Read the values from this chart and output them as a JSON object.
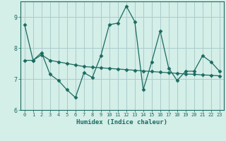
{
  "xlabel": "Humidex (Indice chaleur)",
  "bg_color": "#d4eee8",
  "grid_color": "#aacccc",
  "line_color": "#1a6b60",
  "xlim": [
    -0.5,
    23.5
  ],
  "ylim": [
    6,
    9.5
  ],
  "yticks": [
    6,
    7,
    8,
    9
  ],
  "xticks": [
    0,
    1,
    2,
    3,
    4,
    5,
    6,
    7,
    8,
    9,
    10,
    11,
    12,
    13,
    14,
    15,
    16,
    17,
    18,
    19,
    20,
    21,
    22,
    23
  ],
  "series1_x": [
    0,
    1,
    2,
    3,
    4,
    5,
    6,
    7,
    8,
    9,
    10,
    11,
    12,
    13,
    14,
    15,
    16,
    17,
    18,
    19,
    20,
    21,
    22,
    23
  ],
  "series1_y": [
    8.75,
    7.6,
    7.85,
    7.15,
    6.95,
    6.65,
    6.4,
    7.2,
    7.05,
    7.75,
    8.75,
    8.8,
    9.35,
    8.85,
    6.65,
    7.55,
    8.55,
    7.35,
    6.95,
    7.25,
    7.25,
    7.75,
    7.55,
    7.25
  ],
  "series2_x": [
    0,
    1,
    2,
    3,
    4,
    5,
    6,
    7,
    8,
    9,
    10,
    11,
    12,
    13,
    14,
    15,
    16,
    17,
    18,
    19,
    20,
    21,
    22,
    23
  ],
  "series2_y": [
    7.6,
    7.6,
    7.78,
    7.6,
    7.55,
    7.5,
    7.45,
    7.4,
    7.38,
    7.36,
    7.34,
    7.32,
    7.3,
    7.28,
    7.26,
    7.24,
    7.22,
    7.2,
    7.18,
    7.16,
    7.15,
    7.13,
    7.12,
    7.1
  ],
  "marker": "D",
  "markersize": 2.5,
  "linewidth": 0.9
}
